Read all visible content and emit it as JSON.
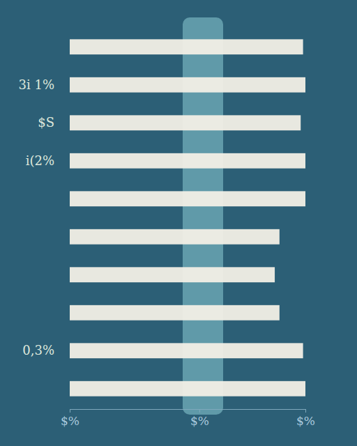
{
  "chart_data": {
    "type": "bar",
    "orientation": "horizontal",
    "categories": [
      null,
      "3i 1%",
      "$S",
      "i(2%",
      null,
      null,
      null,
      null,
      "0,3%",
      null
    ],
    "values": [
      99,
      100,
      98,
      100,
      100,
      89,
      87,
      89,
      99,
      100
    ],
    "color": "#f2efe6",
    "xlim": [
      0,
      100
    ],
    "xticks": [
      {
        "value": 0,
        "label": "$%"
      },
      {
        "value": 55,
        "label": "$%"
      },
      {
        "value": 100,
        "label": "$%"
      }
    ],
    "grid": false
  }
}
